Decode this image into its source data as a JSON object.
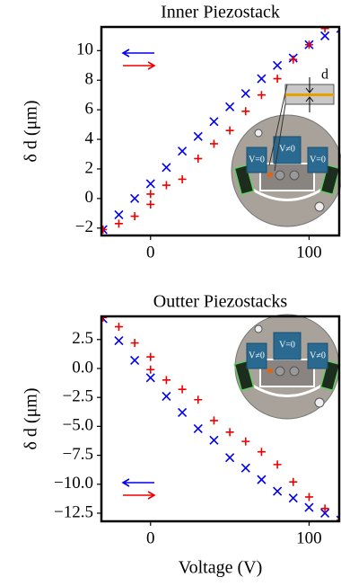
{
  "chart_data": [
    {
      "type": "scatter",
      "title": "Inner Piezostack",
      "ylabel": "δ d (μm)",
      "xlim": [
        -31,
        119
      ],
      "ylim": [
        -2.5,
        11.6
      ],
      "xticks": [
        0,
        100
      ],
      "yticks": [
        {
          "value": -2,
          "label": "−2"
        },
        0,
        2,
        4,
        6,
        8,
        10
      ],
      "legend": "upper left",
      "series": [
        {
          "color": "#0000ee",
          "marker": "x",
          "legend_marker": "arrow-left",
          "x": [
            -30,
            -20,
            -10,
            0,
            10,
            20,
            30,
            40,
            50,
            60,
            70,
            80,
            90,
            100,
            110,
            120
          ],
          "values": [
            -2.1,
            -1.1,
            0.0,
            1.0,
            2.1,
            3.2,
            4.2,
            5.2,
            6.2,
            7.1,
            8.1,
            9.0,
            9.5,
            10.4,
            11.0,
            11.5
          ]
        },
        {
          "color": "#ee0000",
          "marker": "+",
          "legend_marker": "arrow-right",
          "x": [
            -30,
            -20,
            -10,
            0,
            0,
            10,
            20,
            30,
            40,
            50,
            60,
            70,
            80,
            90,
            100,
            110
          ],
          "values": [
            -2.1,
            -1.7,
            -1.2,
            -0.4,
            0.3,
            0.9,
            1.3,
            2.7,
            3.7,
            4.6,
            5.9,
            7.0,
            8.1,
            9.4,
            10.4,
            11.5
          ]
        }
      ],
      "annotations": [
        "V=0",
        "V≠0",
        "V=0",
        "d"
      ]
    },
    {
      "type": "scatter",
      "title": "Outter Piezostacks",
      "ylabel": "δ d (μm)",
      "xlabel": "Voltage (V)",
      "xlim": [
        -31,
        119
      ],
      "ylim": [
        -13.2,
        4.5
      ],
      "xticks": [
        0,
        100
      ],
      "yticks": [
        {
          "value": -12.5,
          "label": "−12.5"
        },
        {
          "value": -10,
          "label": "−10.0"
        },
        {
          "value": -7.5,
          "label": "−7.5"
        },
        {
          "value": -5,
          "label": "−5.0"
        },
        {
          "value": -2.5,
          "label": "−2.5"
        },
        {
          "value": 0,
          "label": "0.0"
        },
        2.5
      ],
      "legend": "lower left",
      "series": [
        {
          "color": "#0000ee",
          "marker": "x",
          "legend_marker": "arrow-left",
          "x": [
            -30,
            -20,
            -10,
            0,
            10,
            20,
            30,
            40,
            50,
            60,
            70,
            80,
            90,
            100,
            110,
            120
          ],
          "values": [
            4.3,
            2.4,
            0.7,
            -0.8,
            -2.4,
            -3.8,
            -5.2,
            -6.2,
            -7.7,
            -8.6,
            -9.6,
            -10.6,
            -11.2,
            -12.0,
            -12.5,
            -13.1
          ]
        },
        {
          "color": "#ee0000",
          "marker": "+",
          "legend_marker": "arrow-right",
          "x": [
            -30,
            -20,
            -10,
            0,
            0,
            10,
            20,
            30,
            40,
            50,
            60,
            70,
            80,
            90,
            100,
            110,
            120
          ],
          "values": [
            4.4,
            3.6,
            2.2,
            1.0,
            -0.1,
            -1.0,
            -1.8,
            -2.7,
            -4.5,
            -5.5,
            -6.3,
            -7.2,
            -8.3,
            -9.8,
            -11.1,
            -12.1,
            -13.1
          ]
        }
      ],
      "annotations": [
        "V≠0",
        "V=0",
        "V≠0"
      ]
    }
  ]
}
